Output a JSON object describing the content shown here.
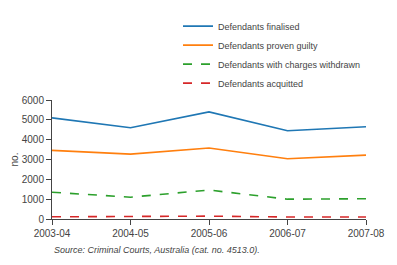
{
  "chart_data": {
    "type": "line",
    "categories": [
      "2003-04",
      "2004-05",
      "2005-06",
      "2006-07",
      "2007-08"
    ],
    "series": [
      {
        "name": "Defendants finalised",
        "values": [
          5100,
          4600,
          5400,
          4450,
          4650
        ],
        "line_style": "solid"
      },
      {
        "name": "Defendants proven guilty",
        "values": [
          3460,
          3270,
          3580,
          3040,
          3220
        ],
        "line_style": "solid"
      },
      {
        "name": "Defendants with charges withdrawn",
        "values": [
          1350,
          1100,
          1460,
          1000,
          1020
        ],
        "line_style": "dashed"
      },
      {
        "name": "Defendants acquitted",
        "values": [
          110,
          120,
          145,
          100,
          100
        ],
        "line_style": "dashed"
      }
    ],
    "ylabel": "no.",
    "ylim": [
      0,
      6000
    ],
    "yticks": [
      0,
      1000,
      2000,
      3000,
      4000,
      5000,
      6000
    ],
    "grid": false,
    "legend": "upper right",
    "source": "Source: Criminal Courts, Australia (cat. no. 4513.0)."
  }
}
